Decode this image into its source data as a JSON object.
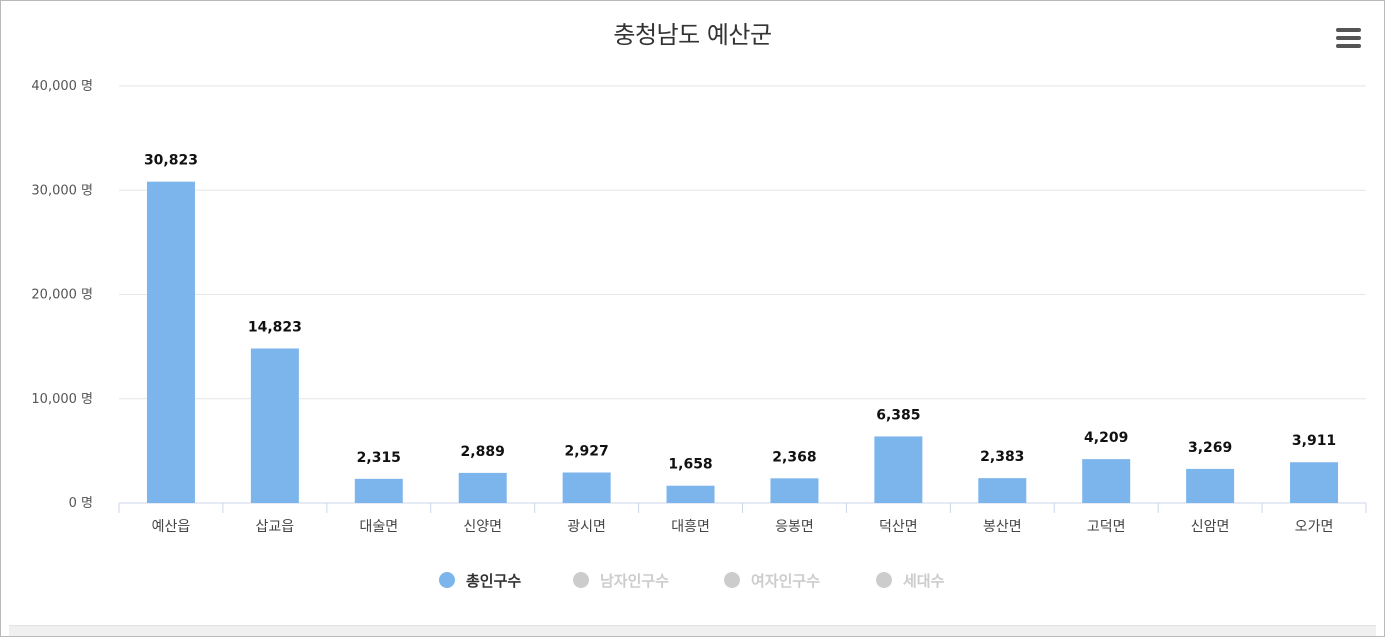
{
  "title": "충청남도 예산군",
  "menu_icon": "hamburger-menu-icon",
  "colors": {
    "bar": "#7cb5ec",
    "legend_inactive": "#cccccc",
    "legend_active_text": "#333333",
    "legend_inactive_text": "#cccccc"
  },
  "chart_data": {
    "type": "bar",
    "categories": [
      "예산읍",
      "삽교읍",
      "대술면",
      "신양면",
      "광시면",
      "대흥면",
      "응봉면",
      "덕산면",
      "봉산면",
      "고덕면",
      "신암면",
      "오가면"
    ],
    "series": [
      {
        "name": "총인구수",
        "values": [
          30823,
          14823,
          2315,
          2889,
          2927,
          1658,
          2368,
          6385,
          2383,
          4209,
          3269,
          3911
        ],
        "visible": true
      }
    ],
    "data_labels": [
      "30,823",
      "14,823",
      "2,315",
      "2,889",
      "2,927",
      "1,658",
      "2,368",
      "6,385",
      "2,383",
      "4,209",
      "3,269",
      "3,911"
    ],
    "y_ticks": [
      0,
      10000,
      20000,
      30000,
      40000
    ],
    "y_tick_labels": [
      "0 명",
      "10,000 명",
      "20,000 명",
      "30,000 명",
      "40,000 명"
    ],
    "ylim": [
      0,
      40000
    ],
    "grid": true,
    "legend_placement": "bottom-center"
  },
  "legend": [
    {
      "label": "총인구수",
      "active": true
    },
    {
      "label": "남자인구수",
      "active": false
    },
    {
      "label": "여자인구수",
      "active": false
    },
    {
      "label": "세대수",
      "active": false
    }
  ]
}
